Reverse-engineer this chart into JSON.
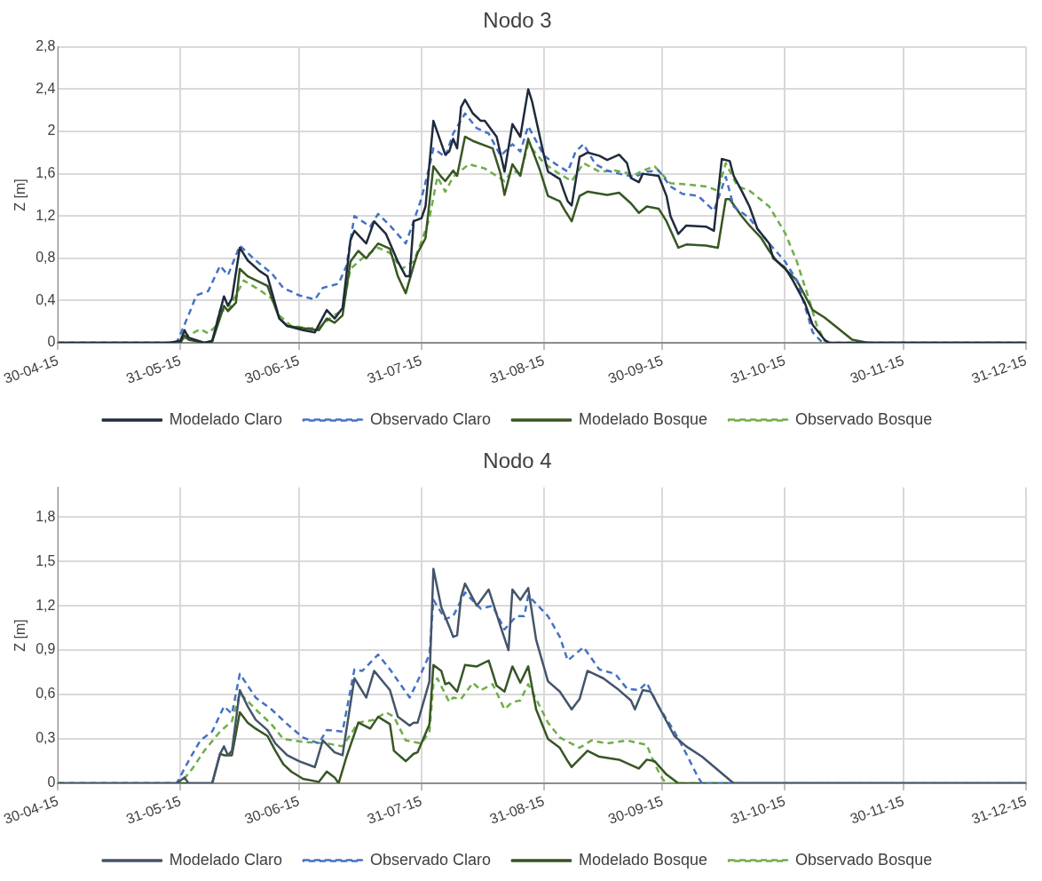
{
  "chart_data": [
    {
      "type": "line",
      "title": "Nodo 3",
      "ylabel": "Z [m]",
      "xlim": [
        "2015-04-30",
        "2015-12-31"
      ],
      "xticks": [
        {
          "value": "2015-04-30",
          "label": "30-04-15"
        },
        {
          "value": "2015-05-31",
          "label": "31-05-15"
        },
        {
          "value": "2015-06-30",
          "label": "30-06-15"
        },
        {
          "value": "2015-07-31",
          "label": "31-07-15"
        },
        {
          "value": "2015-08-31",
          "label": "31-08-15"
        },
        {
          "value": "2015-09-30",
          "label": "30-09-15"
        },
        {
          "value": "2015-10-31",
          "label": "31-10-15"
        },
        {
          "value": "2015-11-30",
          "label": "30-11-15"
        },
        {
          "value": "2015-12-31",
          "label": "31-12-15"
        }
      ],
      "ylim": [
        0,
        2.8
      ],
      "yticks": [
        {
          "value": 0,
          "label": "0"
        },
        {
          "value": 0.4,
          "label": "0,4"
        },
        {
          "value": 0.8,
          "label": "0,8"
        },
        {
          "value": 1.2,
          "label": "1,2"
        },
        {
          "value": 1.6,
          "label": "1,6"
        },
        2,
        {
          "value": 2.4,
          "label": "2,4"
        },
        {
          "value": 2.8,
          "label": "2,8"
        }
      ],
      "grid": true,
      "legend": "bottom",
      "marker": "none",
      "series": [
        {
          "name": "Modelado Claro",
          "color": "#1f2a3c",
          "line_style": "solid",
          "x": [
            "2015-04-30",
            "2015-05-28",
            "2015-05-31",
            "2015-06-01",
            "2015-06-02",
            "2015-06-06",
            "2015-06-08",
            "2015-06-11",
            "2015-06-12",
            "2015-06-13",
            "2015-06-15",
            "2015-06-17",
            "2015-06-20",
            "2015-06-22",
            "2015-06-25",
            "2015-06-27",
            "2015-07-01",
            "2015-07-04",
            "2015-07-07",
            "2015-07-09",
            "2015-07-11",
            "2015-07-13",
            "2015-07-14",
            "2015-07-17",
            "2015-07-19",
            "2015-07-22",
            "2015-07-25",
            "2015-07-27",
            "2015-07-28",
            "2015-07-29",
            "2015-07-31",
            "2015-08-01",
            "2015-08-03",
            "2015-08-06",
            "2015-08-07",
            "2015-08-08",
            "2015-08-09",
            "2015-08-10",
            "2015-08-11",
            "2015-08-13",
            "2015-08-15",
            "2015-08-16",
            "2015-08-19",
            "2015-08-21",
            "2015-08-23",
            "2015-08-25",
            "2015-08-27",
            "2015-08-28",
            "2015-08-31",
            "2015-09-01",
            "2015-09-04",
            "2015-09-05",
            "2015-09-06",
            "2015-09-07",
            "2015-09-09",
            "2015-09-11",
            "2015-09-14",
            "2015-09-16",
            "2015-09-19",
            "2015-09-21",
            "2015-09-22",
            "2015-09-24",
            "2015-09-25",
            "2015-09-29",
            "2015-10-01",
            "2015-10-02",
            "2015-10-04",
            "2015-10-06",
            "2015-10-11",
            "2015-10-13",
            "2015-10-15",
            "2015-10-17",
            "2015-10-18",
            "2015-10-20",
            "2015-10-22",
            "2015-10-24",
            "2015-10-27",
            "2015-10-28",
            "2015-10-31",
            "2015-11-02",
            "2015-11-05",
            "2015-11-07",
            "2015-11-10",
            "2015-11-11",
            "2015-12-31"
          ],
          "values": [
            0,
            0,
            0.02,
            0.12,
            0.05,
            0,
            0.02,
            0.44,
            0.35,
            0.42,
            0.9,
            0.78,
            0.68,
            0.63,
            0.23,
            0.16,
            0.12,
            0.1,
            0.31,
            0.23,
            0.33,
            0.97,
            1.06,
            0.94,
            1.15,
            1.03,
            0.77,
            0.63,
            0.63,
            1.15,
            1.18,
            1.29,
            2.1,
            1.78,
            1.81,
            1.93,
            1.84,
            2.23,
            2.3,
            2.17,
            2.1,
            2.1,
            1.95,
            1.62,
            2.07,
            1.95,
            2.4,
            2.28,
            1.77,
            1.62,
            1.55,
            1.44,
            1.34,
            1.3,
            1.76,
            1.8,
            1.77,
            1.73,
            1.78,
            1.7,
            1.56,
            1.52,
            1.6,
            1.58,
            1.39,
            1.2,
            1.03,
            1.11,
            1.1,
            1.06,
            1.74,
            1.72,
            1.58,
            1.44,
            1.29,
            1.08,
            0.94,
            0.8,
            0.71,
            0.59,
            0.38,
            0.17,
            0.03,
            0,
            0
          ]
        },
        {
          "name": "Observado Claro",
          "color": "#4472c4",
          "line_style": "dashed",
          "x": [
            "2015-04-30",
            "2015-05-30",
            "2015-06-02",
            "2015-06-04",
            "2015-06-07",
            "2015-06-10",
            "2015-06-12",
            "2015-06-15",
            "2015-06-19",
            "2015-06-23",
            "2015-06-26",
            "2015-06-30",
            "2015-07-04",
            "2015-07-06",
            "2015-07-10",
            "2015-07-12",
            "2015-07-14",
            "2015-07-18",
            "2015-07-20",
            "2015-07-23",
            "2015-07-27",
            "2015-07-29",
            "2015-07-31",
            "2015-08-02",
            "2015-08-03",
            "2015-08-06",
            "2015-08-08",
            "2015-08-11",
            "2015-08-14",
            "2015-08-17",
            "2015-08-20",
            "2015-08-23",
            "2015-08-25",
            "2015-08-27",
            "2015-08-31",
            "2015-09-03",
            "2015-09-06",
            "2015-09-08",
            "2015-09-10",
            "2015-09-13",
            "2015-09-16",
            "2015-09-19",
            "2015-09-23",
            "2015-09-26",
            "2015-09-29",
            "2015-10-02",
            "2015-10-05",
            "2015-10-09",
            "2015-10-13",
            "2015-10-16",
            "2015-10-18",
            "2015-10-22",
            "2015-10-25",
            "2015-10-27",
            "2015-10-31",
            "2015-11-03",
            "2015-11-05",
            "2015-11-07",
            "2015-11-09",
            "2015-11-10",
            "2015-12-31"
          ],
          "values": [
            0,
            0,
            0.26,
            0.45,
            0.49,
            0.73,
            0.64,
            0.92,
            0.78,
            0.66,
            0.52,
            0.45,
            0.41,
            0.52,
            0.56,
            0.73,
            1.2,
            1.1,
            1.22,
            1.11,
            0.94,
            1.15,
            1.37,
            1.67,
            1.84,
            1.76,
            1.98,
            2.17,
            2.03,
            1.98,
            1.77,
            1.88,
            1.81,
            2.05,
            1.77,
            1.69,
            1.62,
            1.81,
            1.88,
            1.69,
            1.63,
            1.6,
            1.57,
            1.62,
            1.63,
            1.48,
            1.41,
            1.39,
            1.25,
            1.57,
            1.29,
            1.18,
            1.03,
            0.94,
            0.77,
            0.59,
            0.35,
            0.1,
            0.02,
            0,
            0
          ]
        },
        {
          "name": "Modelado Bosque",
          "color": "#375623",
          "line_style": "solid",
          "x": [
            "2015-04-30",
            "2015-05-31",
            "2015-06-01",
            "2015-06-02",
            "2015-06-06",
            "2015-06-08",
            "2015-06-11",
            "2015-06-12",
            "2015-06-14",
            "2015-06-15",
            "2015-06-17",
            "2015-06-22",
            "2015-06-25",
            "2015-06-27",
            "2015-07-01",
            "2015-07-05",
            "2015-07-07",
            "2015-07-09",
            "2015-07-11",
            "2015-07-13",
            "2015-07-15",
            "2015-07-17",
            "2015-07-20",
            "2015-07-23",
            "2015-07-25",
            "2015-07-27",
            "2015-07-29",
            "2015-07-30",
            "2015-08-01",
            "2015-08-03",
            "2015-08-05",
            "2015-08-06",
            "2015-08-08",
            "2015-08-09",
            "2015-08-11",
            "2015-08-13",
            "2015-08-18",
            "2015-08-20",
            "2015-08-21",
            "2015-08-23",
            "2015-08-25",
            "2015-08-27",
            "2015-08-30",
            "2015-09-01",
            "2015-09-04",
            "2015-09-05",
            "2015-09-07",
            "2015-09-09",
            "2015-09-11",
            "2015-09-16",
            "2015-09-19",
            "2015-09-22",
            "2015-09-24",
            "2015-09-26",
            "2015-09-29",
            "2015-10-01",
            "2015-10-04",
            "2015-10-06",
            "2015-10-11",
            "2015-10-14",
            "2015-10-16",
            "2015-10-17",
            "2015-10-20",
            "2015-10-22",
            "2015-10-25",
            "2015-10-27",
            "2015-10-29",
            "2015-10-31",
            "2015-11-03",
            "2015-11-05",
            "2015-11-07",
            "2015-11-10",
            "2015-11-14",
            "2015-11-17",
            "2015-11-21",
            "2015-12-31"
          ],
          "values": [
            0,
            0,
            0.07,
            0.03,
            0,
            0.01,
            0.35,
            0.3,
            0.38,
            0.7,
            0.63,
            0.54,
            0.23,
            0.16,
            0.14,
            0.12,
            0.23,
            0.19,
            0.26,
            0.77,
            0.87,
            0.8,
            0.94,
            0.89,
            0.63,
            0.47,
            0.73,
            0.85,
            0.99,
            1.67,
            1.57,
            1.53,
            1.63,
            1.58,
            1.95,
            1.91,
            1.84,
            1.6,
            1.4,
            1.69,
            1.58,
            1.93,
            1.63,
            1.39,
            1.34,
            1.27,
            1.15,
            1.39,
            1.43,
            1.4,
            1.42,
            1.32,
            1.23,
            1.29,
            1.27,
            1.15,
            0.9,
            0.93,
            0.92,
            0.9,
            1.36,
            1.36,
            1.2,
            1.11,
            0.99,
            0.87,
            0.77,
            0.7,
            0.59,
            0.45,
            0.31,
            0.24,
            0.12,
            0.03,
            0,
            0
          ]
        },
        {
          "name": "Observado Bosque",
          "color": "#70ad47",
          "line_style": "dashed",
          "x": [
            "2015-04-30",
            "2015-05-31",
            "2015-06-02",
            "2015-06-05",
            "2015-06-07",
            "2015-06-09",
            "2015-06-10",
            "2015-06-12",
            "2015-06-14",
            "2015-06-16",
            "2015-06-20",
            "2015-06-23",
            "2015-06-25",
            "2015-06-28",
            "2015-07-02",
            "2015-07-05",
            "2015-07-08",
            "2015-07-11",
            "2015-07-13",
            "2015-07-16",
            "2015-07-20",
            "2015-07-23",
            "2015-07-26",
            "2015-07-29",
            "2015-07-31",
            "2015-08-02",
            "2015-08-04",
            "2015-08-06",
            "2015-08-08",
            "2015-08-12",
            "2015-08-16",
            "2015-08-21",
            "2015-08-23",
            "2015-08-25",
            "2015-08-27",
            "2015-08-31",
            "2015-09-03",
            "2015-09-07",
            "2015-09-10",
            "2015-09-14",
            "2015-09-18",
            "2015-09-23",
            "2015-09-25",
            "2015-09-28",
            "2015-10-02",
            "2015-10-06",
            "2015-10-11",
            "2015-10-14",
            "2015-10-16",
            "2015-10-19",
            "2015-10-22",
            "2015-10-27",
            "2015-10-31",
            "2015-11-03",
            "2015-11-06",
            "2015-11-08",
            "2015-11-10",
            "2015-11-12",
            "2015-12-31"
          ],
          "values": [
            0,
            0,
            0.07,
            0.13,
            0.09,
            0.16,
            0.31,
            0.3,
            0.45,
            0.59,
            0.5,
            0.42,
            0.26,
            0.16,
            0.14,
            0.14,
            0.24,
            0.31,
            0.7,
            0.8,
            0.9,
            0.85,
            0.7,
            0.77,
            0.96,
            1.18,
            1.57,
            1.43,
            1.57,
            1.69,
            1.65,
            1.53,
            1.63,
            1.6,
            1.88,
            1.7,
            1.62,
            1.53,
            1.7,
            1.62,
            1.63,
            1.59,
            1.63,
            1.67,
            1.51,
            1.5,
            1.48,
            1.44,
            1.7,
            1.48,
            1.44,
            1.29,
            1.04,
            0.77,
            0.42,
            0.17,
            0.02,
            0,
            0
          ]
        }
      ]
    },
    {
      "type": "line",
      "title": "Nodo 4",
      "ylabel": "Z [m]",
      "xlim": [
        "2015-04-30",
        "2015-12-31"
      ],
      "xticks": [
        {
          "value": "2015-04-30",
          "label": "30-04-15"
        },
        {
          "value": "2015-05-31",
          "label": "31-05-15"
        },
        {
          "value": "2015-06-30",
          "label": "30-06-15"
        },
        {
          "value": "2015-07-31",
          "label": "31-07-15"
        },
        {
          "value": "2015-08-31",
          "label": "31-08-15"
        },
        {
          "value": "2015-09-30",
          "label": "30-09-15"
        },
        {
          "value": "2015-10-31",
          "label": "31-10-15"
        },
        {
          "value": "2015-11-30",
          "label": "30-11-15"
        },
        {
          "value": "2015-12-31",
          "label": "31-12-15"
        }
      ],
      "ylim": [
        0,
        2
      ],
      "yticks": [
        {
          "value": 0,
          "label": "0"
        },
        {
          "value": 0.3,
          "label": "0,3"
        },
        {
          "value": 0.6,
          "label": "0,6"
        },
        {
          "value": 0.9,
          "label": "0,9"
        },
        {
          "value": 1.2,
          "label": "1,2"
        },
        {
          "value": 1.5,
          "label": "1,5"
        },
        {
          "value": 1.8,
          "label": "1,8"
        }
      ],
      "grid": true,
      "legend": "bottom",
      "marker": "none",
      "series": [
        {
          "name": "Modelado Claro",
          "color": "#44546a",
          "line_style": "solid",
          "x": [
            "2015-04-30",
            "2015-05-30",
            "2015-06-01",
            "2015-06-02",
            "2015-06-08",
            "2015-06-10",
            "2015-06-11",
            "2015-06-12",
            "2015-06-13",
            "2015-06-15",
            "2015-06-17",
            "2015-06-19",
            "2015-06-22",
            "2015-06-24",
            "2015-06-27",
            "2015-06-30",
            "2015-07-04",
            "2015-07-06",
            "2015-07-09",
            "2015-07-11",
            "2015-07-14",
            "2015-07-17",
            "2015-07-19",
            "2015-07-23",
            "2015-07-25",
            "2015-07-28",
            "2015-07-29",
            "2015-07-30",
            "2015-08-02",
            "2015-08-03",
            "2015-08-05",
            "2015-08-07",
            "2015-08-08",
            "2015-08-09",
            "2015-08-10",
            "2015-08-11",
            "2015-08-14",
            "2015-08-17",
            "2015-08-20",
            "2015-08-22",
            "2015-08-23",
            "2015-08-25",
            "2015-08-27",
            "2015-08-29",
            "2015-09-01",
            "2015-09-04",
            "2015-09-07",
            "2015-09-09",
            "2015-09-11",
            "2015-09-15",
            "2015-09-19",
            "2015-09-22",
            "2015-09-23",
            "2015-09-25",
            "2015-09-27",
            "2015-09-30",
            "2015-10-03",
            "2015-10-06",
            "2015-10-10",
            "2015-10-14",
            "2015-10-18",
            "2015-12-31"
          ],
          "values": [
            0,
            0,
            0.04,
            0,
            0,
            0.2,
            0.25,
            0.19,
            0.22,
            0.63,
            0.52,
            0.43,
            0.36,
            0.27,
            0.19,
            0.15,
            0.11,
            0.29,
            0.21,
            0.19,
            0.71,
            0.58,
            0.76,
            0.63,
            0.45,
            0.39,
            0.41,
            0.41,
            0.69,
            1.45,
            1.19,
            1.06,
            0.99,
            1.0,
            1.26,
            1.35,
            1.2,
            1.31,
            1.06,
            0.9,
            1.31,
            1.24,
            1.32,
            0.97,
            0.69,
            0.62,
            0.5,
            0.57,
            0.76,
            0.71,
            0.63,
            0.56,
            0.5,
            0.63,
            0.62,
            0.47,
            0.32,
            0.25,
            0.18,
            0.09,
            0,
            0
          ]
        },
        {
          "name": "Observado Claro",
          "color": "#4472c4",
          "line_style": "dashed",
          "x": [
            "2015-04-30",
            "2015-05-30",
            "2015-06-02",
            "2015-06-05",
            "2015-06-08",
            "2015-06-11",
            "2015-06-13",
            "2015-06-15",
            "2015-06-19",
            "2015-06-23",
            "2015-06-27",
            "2015-07-01",
            "2015-07-05",
            "2015-07-07",
            "2015-07-11",
            "2015-07-14",
            "2015-07-16",
            "2015-07-20",
            "2015-07-23",
            "2015-07-28",
            "2015-07-30",
            "2015-08-02",
            "2015-08-03",
            "2015-08-06",
            "2015-08-08",
            "2015-08-11",
            "2015-08-15",
            "2015-08-18",
            "2015-08-21",
            "2015-08-24",
            "2015-08-26",
            "2015-08-27",
            "2015-09-01",
            "2015-09-04",
            "2015-09-06",
            "2015-09-10",
            "2015-09-14",
            "2015-09-18",
            "2015-09-21",
            "2015-09-24",
            "2015-09-26",
            "2015-09-29",
            "2015-10-03",
            "2015-10-06",
            "2015-10-09",
            "2015-10-10",
            "2015-12-31"
          ],
          "values": [
            0,
            0,
            0.15,
            0.29,
            0.35,
            0.52,
            0.47,
            0.74,
            0.58,
            0.5,
            0.4,
            0.31,
            0.27,
            0.36,
            0.35,
            0.77,
            0.76,
            0.87,
            0.77,
            0.58,
            0.69,
            0.87,
            1.24,
            1.11,
            1.13,
            1.29,
            1.18,
            1.2,
            1.04,
            1.13,
            1.13,
            1.27,
            1.13,
            0.99,
            0.83,
            0.92,
            0.77,
            0.74,
            0.64,
            0.63,
            0.68,
            0.52,
            0.35,
            0.2,
            0.04,
            0,
            0
          ]
        },
        {
          "name": "Modelado Bosque",
          "color": "#375623",
          "line_style": "solid",
          "x": [
            "2015-04-30",
            "2015-06-08",
            "2015-06-10",
            "2015-06-11",
            "2015-06-13",
            "2015-06-15",
            "2015-06-17",
            "2015-06-19",
            "2015-06-22",
            "2015-06-24",
            "2015-06-26",
            "2015-06-28",
            "2015-07-01",
            "2015-07-05",
            "2015-07-07",
            "2015-07-09",
            "2015-07-10",
            "2015-07-12",
            "2015-07-15",
            "2015-07-18",
            "2015-07-20",
            "2015-07-23",
            "2015-07-24",
            "2015-07-27",
            "2015-07-29",
            "2015-07-30",
            "2015-08-02",
            "2015-08-03",
            "2015-08-05",
            "2015-08-06",
            "2015-08-07",
            "2015-08-09",
            "2015-08-11",
            "2015-08-14",
            "2015-08-17",
            "2015-08-19",
            "2015-08-21",
            "2015-08-23",
            "2015-08-25",
            "2015-08-27",
            "2015-08-29",
            "2015-09-01",
            "2015-09-04",
            "2015-09-06",
            "2015-09-07",
            "2015-09-11",
            "2015-09-14",
            "2015-09-19",
            "2015-09-24",
            "2015-09-26",
            "2015-09-28",
            "2015-10-01",
            "2015-10-04",
            "2015-12-31"
          ],
          "values": [
            0,
            0,
            0.2,
            0.19,
            0.19,
            0.48,
            0.41,
            0.37,
            0.32,
            0.22,
            0.13,
            0.08,
            0.03,
            0.01,
            0.08,
            0.04,
            0,
            0.18,
            0.41,
            0.37,
            0.45,
            0.4,
            0.22,
            0.15,
            0.2,
            0.21,
            0.4,
            0.8,
            0.76,
            0.67,
            0.68,
            0.62,
            0.8,
            0.79,
            0.83,
            0.66,
            0.62,
            0.79,
            0.68,
            0.79,
            0.5,
            0.3,
            0.24,
            0.15,
            0.11,
            0.22,
            0.18,
            0.16,
            0.1,
            0.16,
            0.15,
            0.06,
            0,
            0
          ]
        },
        {
          "name": "Observado Bosque",
          "color": "#70ad47",
          "line_style": "dashed",
          "x": [
            "2015-04-30",
            "2015-05-31",
            "2015-06-03",
            "2015-06-06",
            "2015-06-10",
            "2015-06-13",
            "2015-06-15",
            "2015-06-19",
            "2015-06-23",
            "2015-06-26",
            "2015-07-01",
            "2015-07-07",
            "2015-07-11",
            "2015-07-15",
            "2015-07-19",
            "2015-07-22",
            "2015-07-24",
            "2015-07-27",
            "2015-07-31",
            "2015-08-02",
            "2015-08-03",
            "2015-08-04",
            "2015-08-07",
            "2015-08-08",
            "2015-08-10",
            "2015-08-13",
            "2015-08-15",
            "2015-08-18",
            "2015-08-21",
            "2015-08-23",
            "2015-08-25",
            "2015-08-27",
            "2015-08-29",
            "2015-09-01",
            "2015-09-04",
            "2015-09-09",
            "2015-09-12",
            "2015-09-16",
            "2015-09-21",
            "2015-09-26",
            "2015-09-28",
            "2015-09-30",
            "2015-10-01",
            "2015-12-31"
          ],
          "values": [
            0,
            0,
            0.1,
            0.22,
            0.35,
            0.42,
            0.61,
            0.5,
            0.4,
            0.3,
            0.28,
            0.27,
            0.25,
            0.41,
            0.43,
            0.48,
            0.45,
            0.29,
            0.27,
            0.35,
            0.67,
            0.71,
            0.55,
            0.58,
            0.57,
            0.68,
            0.63,
            0.67,
            0.5,
            0.55,
            0.56,
            0.67,
            0.57,
            0.41,
            0.31,
            0.24,
            0.29,
            0.27,
            0.29,
            0.26,
            0.13,
            0.03,
            0,
            0
          ]
        }
      ]
    }
  ]
}
